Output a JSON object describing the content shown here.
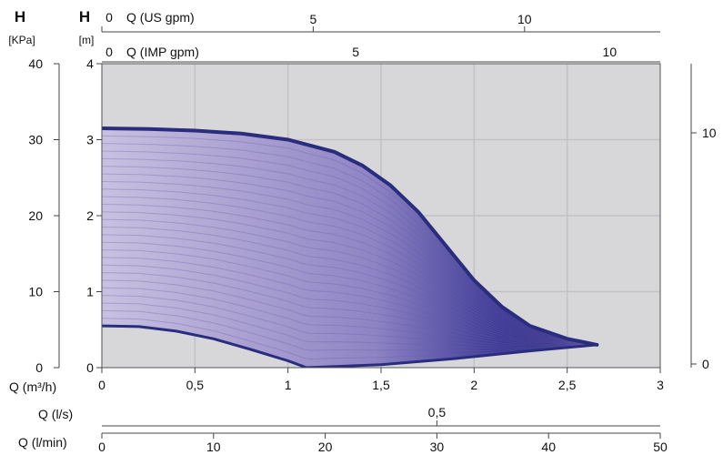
{
  "chart_data": {
    "type": "area",
    "labels": {
      "h_kpa": "H",
      "h_kpa_unit": "[KPa]",
      "h_m": "H",
      "h_m_unit": "[m]",
      "q_us": "Q (US gpm)",
      "q_imp": "Q (IMP gpm)",
      "q_m3h": "Q (m³/h)",
      "q_ls": "Q (l/s)",
      "q_lmin": "Q (l/min)"
    },
    "axes": {
      "q_m3h": {
        "range": [
          0,
          3
        ],
        "ticks": [
          0,
          0.5,
          1,
          1.5,
          2,
          2.5,
          3
        ],
        "tick_labels": [
          "0",
          "0,5",
          "1",
          "1,5",
          "2",
          "2,5",
          "3"
        ]
      },
      "h_m": {
        "range": [
          0,
          4
        ],
        "ticks": [
          0,
          1,
          2,
          3,
          4
        ],
        "tick_labels": [
          "0",
          "1",
          "2",
          "3",
          "4"
        ]
      },
      "h_kpa": {
        "range": [
          0,
          40
        ],
        "ticks": [
          0,
          10,
          20,
          30,
          40
        ],
        "tick_labels": [
          "0",
          "10",
          "20",
          "30",
          "40"
        ]
      },
      "q_us": {
        "ticks": [
          0,
          5,
          10
        ],
        "tick_labels": [
          "0",
          "5",
          "10"
        ]
      },
      "q_imp": {
        "ticks": [
          0,
          5,
          10
        ],
        "tick_labels": [
          "0",
          "5",
          "10"
        ]
      },
      "q_ls": {
        "ticks": [
          0.5
        ],
        "tick_labels": [
          "0,5"
        ]
      },
      "q_lmin": {
        "range": [
          0,
          50
        ],
        "ticks": [
          0,
          10,
          20,
          30,
          40,
          50
        ],
        "tick_labels": [
          "0",
          "10",
          "20",
          "30",
          "40",
          "50"
        ]
      },
      "right": {
        "ticks": [
          0,
          10
        ],
        "tick_labels": [
          "0",
          "10"
        ]
      }
    },
    "series": [
      {
        "values": [
          [
            0,
            3.15
          ],
          [
            0.25,
            3.14
          ],
          [
            0.5,
            3.12
          ],
          [
            0.75,
            3.08
          ],
          [
            1.0,
            3.0
          ],
          [
            1.25,
            2.84
          ],
          [
            1.4,
            2.66
          ],
          [
            1.55,
            2.4
          ],
          [
            1.7,
            2.05
          ],
          [
            1.85,
            1.6
          ],
          [
            2.0,
            1.15
          ],
          [
            2.15,
            0.8
          ],
          [
            2.3,
            0.55
          ],
          [
            2.5,
            0.38
          ],
          [
            2.66,
            0.3
          ]
        ]
      },
      {
        "values": [
          [
            0,
            0.55
          ],
          [
            0.2,
            0.54
          ],
          [
            0.4,
            0.48
          ],
          [
            0.6,
            0.38
          ],
          [
            0.8,
            0.24
          ],
          [
            1.0,
            0.09
          ],
          [
            1.1,
            0.0
          ]
        ]
      },
      {
        "values": [
          [
            1.1,
            0.0
          ],
          [
            1.5,
            0.04
          ],
          [
            1.9,
            0.12
          ],
          [
            2.3,
            0.22
          ],
          [
            2.66,
            0.3
          ]
        ]
      }
    ],
    "operating_field": "filled envelope between the maximum and minimum curves",
    "colors": {
      "curve": "#2a2c7d",
      "field_light": "#b9b2d8",
      "field_dark": "#1b1a70",
      "plot_bg": "#d7d7da",
      "grid": "#c1c1c6"
    },
    "grid": true
  }
}
